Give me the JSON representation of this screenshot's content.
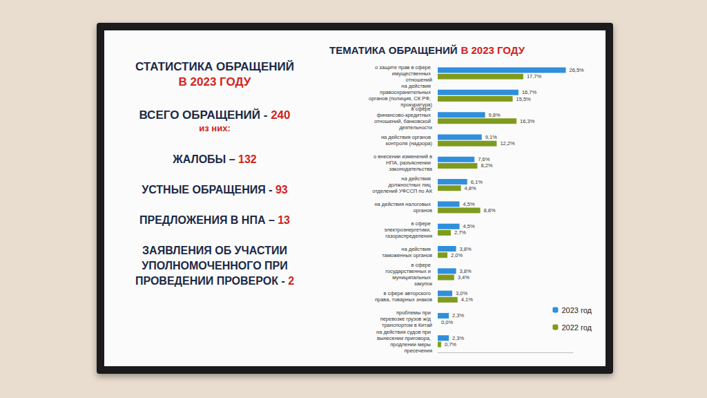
{
  "summary": {
    "heading": [
      "СТАТИСТИКА ОБРАЩЕНИЙ",
      "В 2023 ГОДУ"
    ],
    "total": {
      "label": "ВСЕГО ОБРАЩЕНИЙ - ",
      "value": 240
    },
    "note": "из них:",
    "items": [
      {
        "label": "ЖАЛОБЫ – ",
        "value": 132
      },
      {
        "label": "УСТНЫЕ ОБРАЩЕНИЯ - ",
        "value": 93
      },
      {
        "label": "ПРЕДЛОЖЕНИЯ В НПА – ",
        "value": 13
      },
      {
        "label": "ЗАЯВЛЕНИЯ ОБ УЧАСТИИ УПОЛНОМОЧЕННОГО ПРИ ПРОВЕДЕНИИ ПРОВЕРОК - ",
        "value": 2
      }
    ]
  },
  "chart_data": {
    "type": "bar",
    "orientation": "horizontal",
    "title": [
      "ТЕМАТИКА ОБРАЩЕНИЙ",
      "В 2023 ГОДУ"
    ],
    "categories": [
      "о защите прав в сфере имущественных отношений",
      "на действия правоохранительных органов (полиция, СК РФ, прокуратура)",
      "в сфере финансово-кредитных отношений, банковской деятельности",
      "на действия органов контроля (надзора)",
      "о внесении изменений в НПА, разъяснении законодательства",
      "на действия должностных лиц отделений УФССП по АК",
      "на действия налоговых органов",
      "в сфере электроэнергетики, газораспределения",
      "на действия таможенных органов",
      "в сфере государственных и муниципальных закупок",
      "в сфере авторского права, товарных знаков",
      "проблемы при перевозке грузов ж/д транспортом в Китай",
      "на действия судов при вынесении приговора, продлении меры пресечения"
    ],
    "series": [
      {
        "name": "2023 год",
        "color": "#2f8fdc",
        "values": [
          26.5,
          16.7,
          9.8,
          9.1,
          7.6,
          6.1,
          4.5,
          4.5,
          3.8,
          3.8,
          3.0,
          2.3,
          2.3
        ],
        "value_labels": [
          "26,5%",
          "16,7%",
          "9,8%",
          "9,1%",
          "7,6%",
          "6,1%",
          "4,5%",
          "4,5%",
          "3,8%",
          "3,8%",
          "3,0%",
          "2,3%",
          "2,3%"
        ]
      },
      {
        "name": "2022 год",
        "color": "#7f9b1e",
        "values": [
          17.7,
          15.5,
          16.3,
          12.2,
          8.2,
          4.8,
          8.8,
          2.7,
          2.0,
          3.4,
          4.1,
          0.0,
          0.7
        ],
        "value_labels": [
          "17,7%",
          "15,5%",
          "16,3%",
          "12,2%",
          "8,2%",
          "4,8%",
          "8,8%",
          "2,7%",
          "2,0%",
          "3,4%",
          "4,1%",
          "0,0%",
          "0,7%"
        ]
      }
    ],
    "xlim": [
      0,
      28
    ],
    "data_labels": true,
    "tick_labels": "y",
    "grid": false,
    "legend": "bottom-right"
  }
}
